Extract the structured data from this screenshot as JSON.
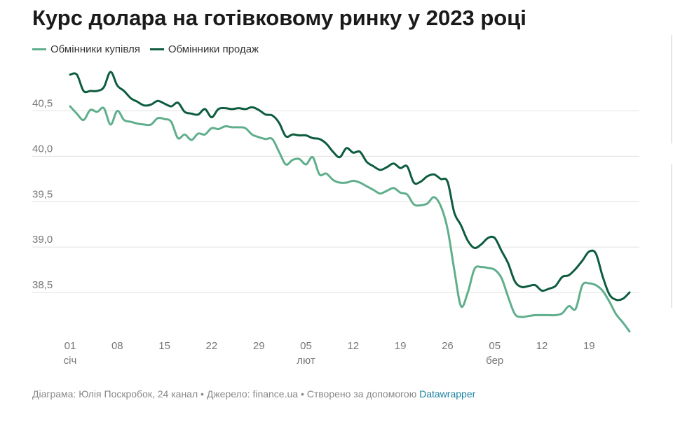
{
  "title": "Курс долара на готівковому ринку у 2023 році",
  "legend": [
    {
      "label": "Обмінники купівля",
      "color": "#5fae8c"
    },
    {
      "label": "Обмінники продаж",
      "color": "#0d5c3d"
    }
  ],
  "footer": {
    "text": "Діаграма: Юлія Поскробок, 24 канал • Джерело: finance.ua • Створено за допомогою ",
    "link": "Datawrapper"
  },
  "chart_data": {
    "type": "line",
    "title": "Курс долара на готівковому ринку у 2023 році",
    "xlabel": "",
    "ylabel": "",
    "x_unit": "day of year 2023 (1 = 01 січ)",
    "ylim": [
      38.05,
      40.95
    ],
    "yticks": [
      38.5,
      39.0,
      39.5,
      40.0,
      40.5
    ],
    "ytick_labels": [
      "38,5",
      "39,0",
      "39,5",
      "40,0",
      "40,5"
    ],
    "xticks": [
      {
        "day": 1,
        "label": "01",
        "month": "січ"
      },
      {
        "day": 8,
        "label": "08",
        "month": ""
      },
      {
        "day": 15,
        "label": "15",
        "month": ""
      },
      {
        "day": 22,
        "label": "22",
        "month": ""
      },
      {
        "day": 29,
        "label": "29",
        "month": ""
      },
      {
        "day": 36,
        "label": "05",
        "month": "лют"
      },
      {
        "day": 43,
        "label": "12",
        "month": ""
      },
      {
        "day": 50,
        "label": "19",
        "month": ""
      },
      {
        "day": 57,
        "label": "26",
        "month": ""
      },
      {
        "day": 64,
        "label": "05",
        "month": "бер"
      },
      {
        "day": 71,
        "label": "12",
        "month": ""
      },
      {
        "day": 78,
        "label": "19",
        "month": ""
      }
    ],
    "series": [
      {
        "name": "Обмінники купівля",
        "color": "#5fae8c",
        "points": [
          [
            1,
            40.55
          ],
          [
            2,
            40.47
          ],
          [
            3,
            40.4
          ],
          [
            4,
            40.51
          ],
          [
            5,
            40.49
          ],
          [
            6,
            40.53
          ],
          [
            7,
            40.35
          ],
          [
            8,
            40.5
          ],
          [
            9,
            40.4
          ],
          [
            10,
            40.38
          ],
          [
            11,
            40.36
          ],
          [
            12,
            40.35
          ],
          [
            13,
            40.35
          ],
          [
            14,
            40.42
          ],
          [
            15,
            40.41
          ],
          [
            16,
            40.38
          ],
          [
            17,
            40.2
          ],
          [
            18,
            40.24
          ],
          [
            19,
            40.18
          ],
          [
            20,
            40.25
          ],
          [
            21,
            40.24
          ],
          [
            22,
            40.31
          ],
          [
            23,
            40.3
          ],
          [
            24,
            40.33
          ],
          [
            25,
            40.32
          ],
          [
            26,
            40.32
          ],
          [
            27,
            40.31
          ],
          [
            28,
            40.24
          ],
          [
            29,
            40.21
          ],
          [
            30,
            40.19
          ],
          [
            31,
            40.19
          ],
          [
            32,
            40.05
          ],
          [
            33,
            39.91
          ],
          [
            34,
            39.96
          ],
          [
            35,
            39.97
          ],
          [
            36,
            39.91
          ],
          [
            37,
            39.99
          ],
          [
            38,
            39.8
          ],
          [
            39,
            39.81
          ],
          [
            40,
            39.74
          ],
          [
            41,
            39.71
          ],
          [
            42,
            39.71
          ],
          [
            43,
            39.73
          ],
          [
            44,
            39.71
          ],
          [
            45,
            39.67
          ],
          [
            46,
            39.63
          ],
          [
            47,
            39.59
          ],
          [
            48,
            39.62
          ],
          [
            49,
            39.65
          ],
          [
            50,
            39.6
          ],
          [
            51,
            39.58
          ],
          [
            52,
            39.47
          ],
          [
            53,
            39.46
          ],
          [
            54,
            39.48
          ],
          [
            55,
            39.55
          ],
          [
            56,
            39.45
          ],
          [
            57,
            39.2
          ],
          [
            58,
            38.75
          ],
          [
            59,
            38.35
          ],
          [
            60,
            38.5
          ],
          [
            61,
            38.76
          ],
          [
            62,
            38.78
          ],
          [
            63,
            38.77
          ],
          [
            64,
            38.75
          ],
          [
            65,
            38.66
          ],
          [
            66,
            38.45
          ],
          [
            67,
            38.26
          ],
          [
            68,
            38.23
          ],
          [
            69,
            38.24
          ],
          [
            70,
            38.25
          ],
          [
            71,
            38.25
          ],
          [
            72,
            38.25
          ],
          [
            73,
            38.25
          ],
          [
            74,
            38.27
          ],
          [
            75,
            38.35
          ],
          [
            76,
            38.32
          ],
          [
            77,
            38.58
          ],
          [
            78,
            38.6
          ],
          [
            79,
            38.58
          ],
          [
            80,
            38.52
          ],
          [
            81,
            38.4
          ],
          [
            82,
            38.26
          ],
          [
            83,
            38.17
          ],
          [
            84,
            38.07
          ]
        ]
      },
      {
        "name": "Обмінники продаж",
        "color": "#0d5c3d",
        "points": [
          [
            1,
            40.9
          ],
          [
            2,
            40.9
          ],
          [
            3,
            40.72
          ],
          [
            4,
            40.72
          ],
          [
            5,
            40.72
          ],
          [
            6,
            40.76
          ],
          [
            7,
            40.93
          ],
          [
            8,
            40.78
          ],
          [
            9,
            40.72
          ],
          [
            10,
            40.64
          ],
          [
            11,
            40.6
          ],
          [
            12,
            40.56
          ],
          [
            13,
            40.57
          ],
          [
            14,
            40.61
          ],
          [
            15,
            40.58
          ],
          [
            16,
            40.55
          ],
          [
            17,
            40.59
          ],
          [
            18,
            40.49
          ],
          [
            19,
            40.47
          ],
          [
            20,
            40.46
          ],
          [
            21,
            40.52
          ],
          [
            22,
            40.43
          ],
          [
            23,
            40.52
          ],
          [
            24,
            40.53
          ],
          [
            25,
            40.52
          ],
          [
            26,
            40.53
          ],
          [
            27,
            40.52
          ],
          [
            28,
            40.54
          ],
          [
            29,
            40.51
          ],
          [
            30,
            40.46
          ],
          [
            31,
            40.45
          ],
          [
            32,
            40.37
          ],
          [
            33,
            40.22
          ],
          [
            34,
            40.24
          ],
          [
            35,
            40.23
          ],
          [
            36,
            40.23
          ],
          [
            37,
            40.2
          ],
          [
            38,
            40.19
          ],
          [
            39,
            40.14
          ],
          [
            40,
            40.05
          ],
          [
            41,
            39.99
          ],
          [
            42,
            40.09
          ],
          [
            43,
            40.04
          ],
          [
            44,
            40.05
          ],
          [
            45,
            39.94
          ],
          [
            46,
            39.89
          ],
          [
            47,
            39.85
          ],
          [
            48,
            39.88
          ],
          [
            49,
            39.92
          ],
          [
            50,
            39.87
          ],
          [
            51,
            39.89
          ],
          [
            52,
            39.71
          ],
          [
            53,
            39.72
          ],
          [
            54,
            39.78
          ],
          [
            55,
            39.8
          ],
          [
            56,
            39.75
          ],
          [
            57,
            39.72
          ],
          [
            58,
            39.38
          ],
          [
            59,
            39.24
          ],
          [
            60,
            39.07
          ],
          [
            61,
            38.99
          ],
          [
            62,
            39.03
          ],
          [
            63,
            39.1
          ],
          [
            64,
            39.1
          ],
          [
            65,
            38.96
          ],
          [
            66,
            38.82
          ],
          [
            67,
            38.62
          ],
          [
            68,
            38.56
          ],
          [
            69,
            38.57
          ],
          [
            70,
            38.58
          ],
          [
            71,
            38.52
          ],
          [
            72,
            38.54
          ],
          [
            73,
            38.57
          ],
          [
            74,
            38.67
          ],
          [
            75,
            38.69
          ],
          [
            76,
            38.76
          ],
          [
            77,
            38.85
          ],
          [
            78,
            38.95
          ],
          [
            79,
            38.93
          ],
          [
            80,
            38.68
          ],
          [
            81,
            38.48
          ],
          [
            82,
            38.42
          ],
          [
            83,
            38.43
          ],
          [
            84,
            38.5
          ]
        ]
      }
    ]
  }
}
